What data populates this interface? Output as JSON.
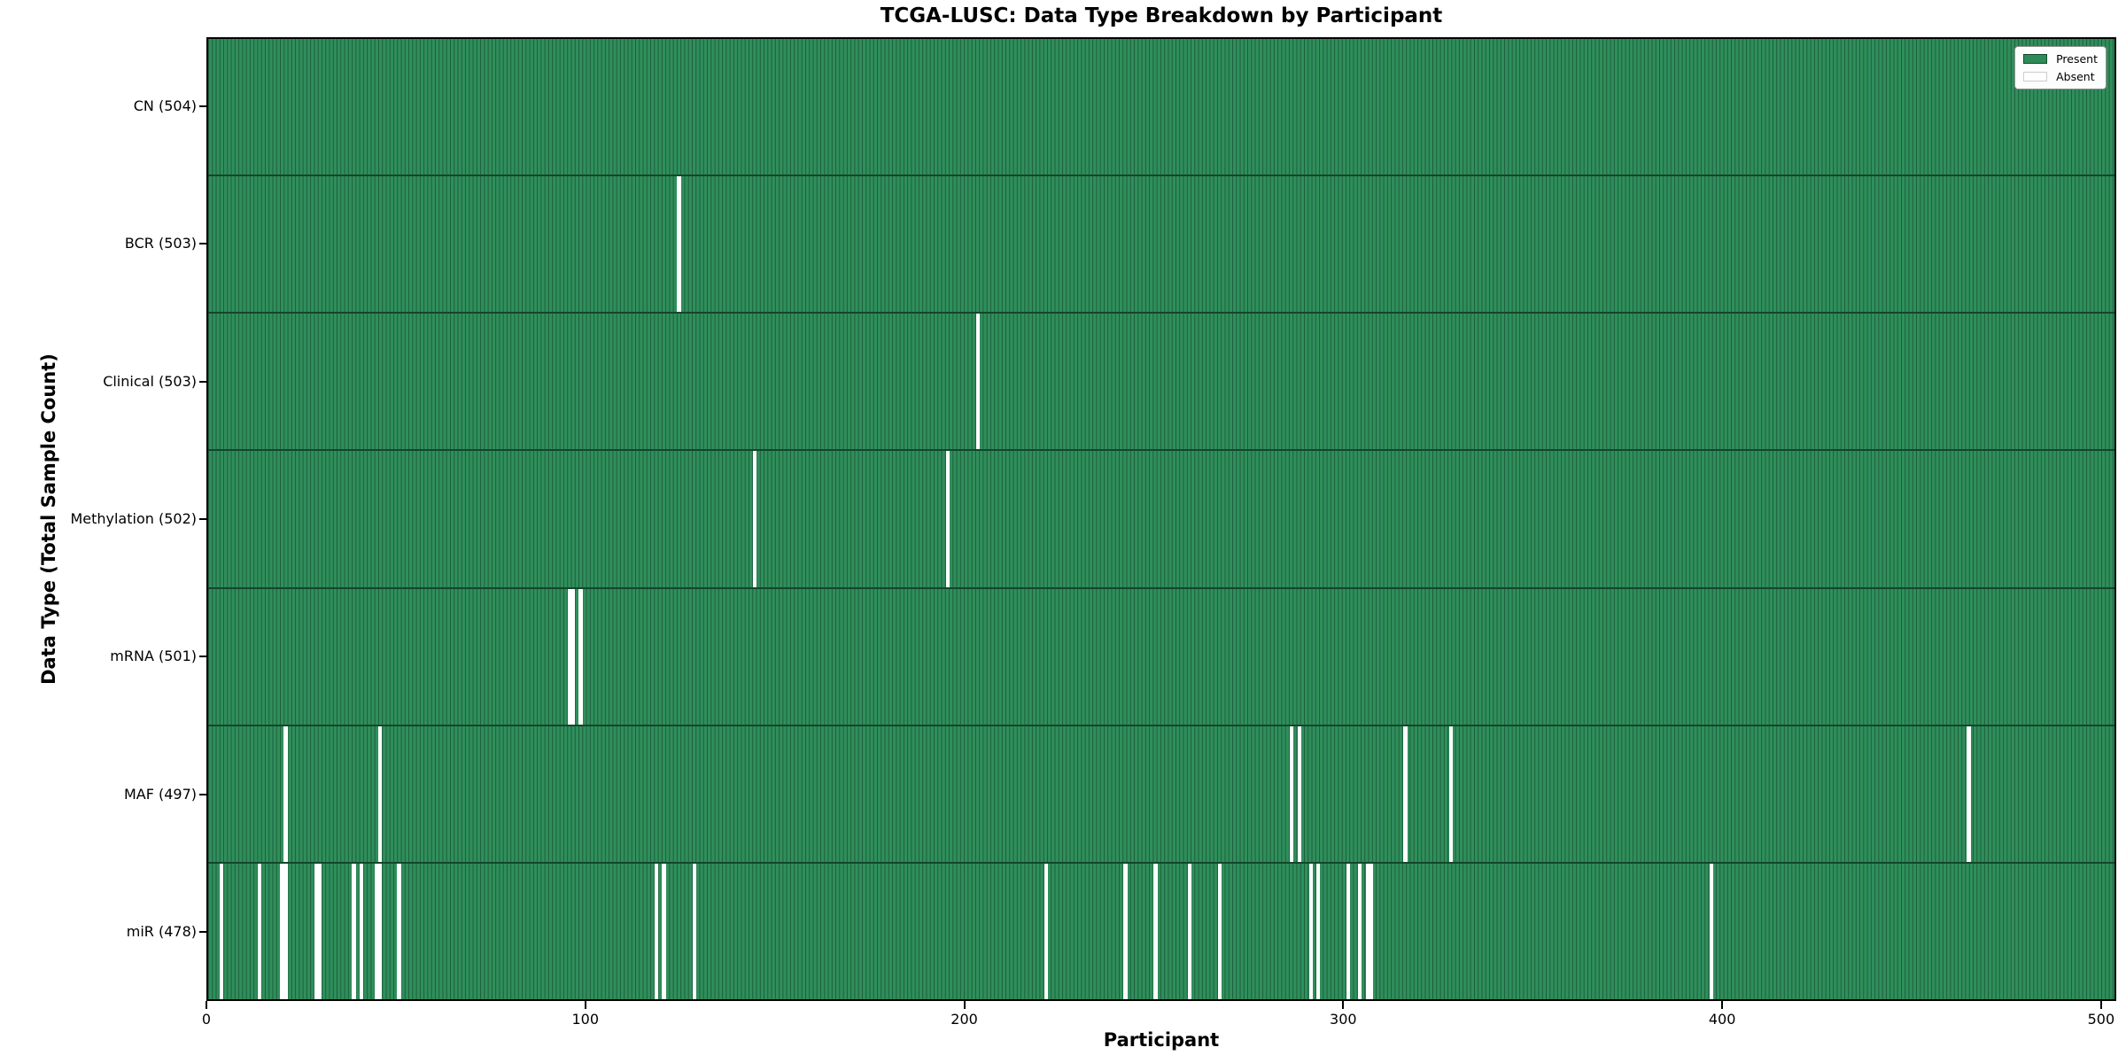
{
  "chart_data": {
    "type": "heatmap",
    "title": "TCGA-LUSC: Data Type Breakdown by Participant",
    "xlabel": "Participant",
    "ylabel": "Data Type (Total Sample Count)",
    "n_participants": 504,
    "x_ticks": [
      0,
      100,
      200,
      300,
      400,
      500
    ],
    "xlim": [
      0,
      504
    ],
    "grid": false,
    "legend_position": "upper right",
    "colors": {
      "present": "#2e8b57",
      "absent": "#ffffff",
      "cell_edge": "#1e5c3c"
    },
    "legend": [
      {
        "label": "Present",
        "color": "#2e8b57"
      },
      {
        "label": "Absent",
        "color": "#ffffff"
      }
    ],
    "rows": [
      {
        "label": "CN (504)",
        "data_type": "CN",
        "present_count": 504,
        "absent_participants": []
      },
      {
        "label": "BCR (503)",
        "data_type": "BCR",
        "present_count": 503,
        "absent_participants": [
          124
        ]
      },
      {
        "label": "Clinical (503)",
        "data_type": "Clinical",
        "present_count": 503,
        "absent_participants": [
          203
        ]
      },
      {
        "label": "Methylation (502)",
        "data_type": "Methylation",
        "present_count": 502,
        "absent_participants": [
          144,
          195
        ]
      },
      {
        "label": "mRNA (501)",
        "data_type": "mRNA",
        "present_count": 501,
        "absent_participants": [
          95,
          96,
          98
        ]
      },
      {
        "label": "MAF (497)",
        "data_type": "MAF",
        "present_count": 497,
        "absent_participants": [
          20,
          45,
          286,
          288,
          316,
          328,
          465
        ]
      },
      {
        "label": "miR (478)",
        "data_type": "miR",
        "present_count": 478,
        "absent_participants": [
          3,
          13,
          19,
          20,
          28,
          29,
          38,
          40,
          44,
          45,
          50,
          118,
          120,
          128,
          221,
          242,
          250,
          259,
          267,
          291,
          293,
          301,
          304,
          306,
          307,
          397
        ]
      }
    ]
  }
}
